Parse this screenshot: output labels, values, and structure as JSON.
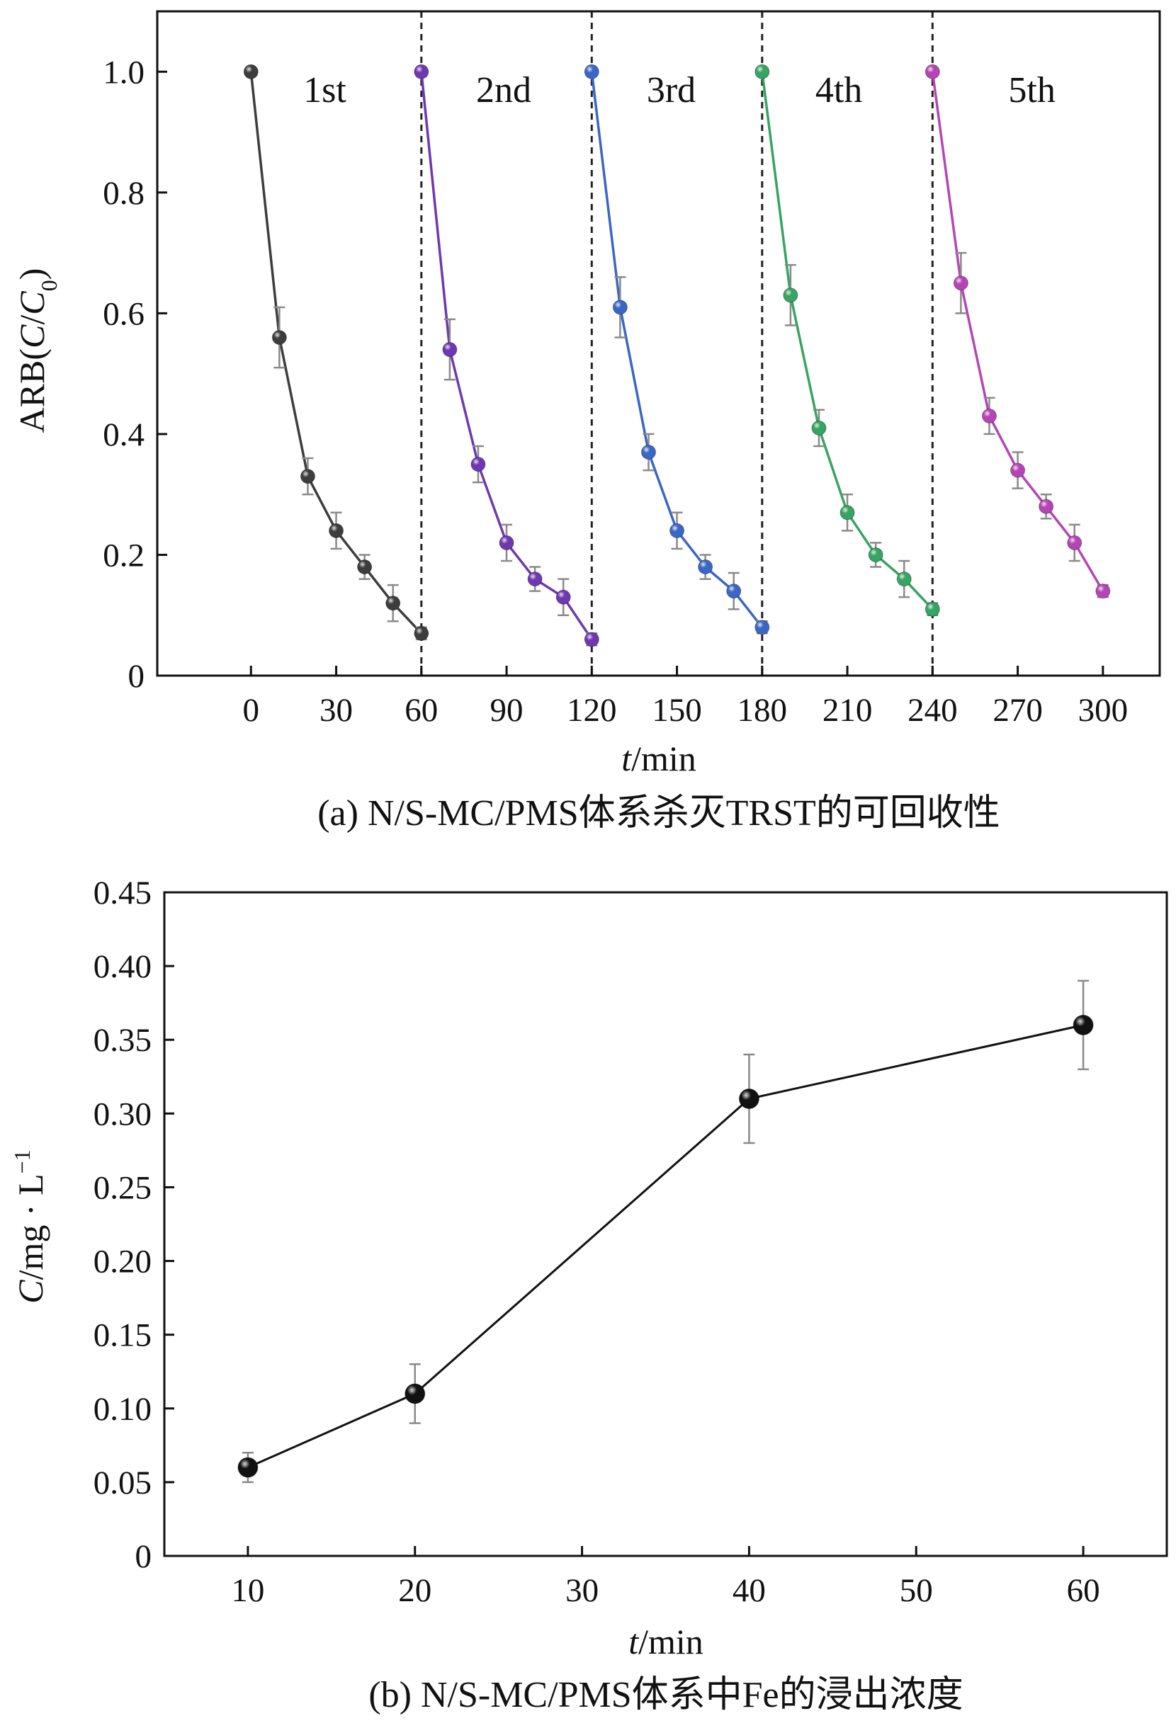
{
  "chart_data": [
    {
      "type": "line",
      "panel": "a",
      "ylabel_main": "ARB(",
      "ylabel_c": "C",
      "ylabel_slash": "/",
      "ylabel_c0": "C",
      "ylabel_sub": "0",
      "ylabel_close": ")",
      "xlabel_italic": "t",
      "xlabel_rest": "/min",
      "caption": "(a) N/S-MC/PMS体系杀灭TRST的可回收性",
      "xlim": [
        -33,
        320
      ],
      "ylim": [
        0,
        1.1
      ],
      "xticks": [
        0,
        30,
        60,
        90,
        120,
        150,
        180,
        210,
        240,
        270,
        300
      ],
      "xtick_labels": [
        "0",
        "30",
        "60",
        "90",
        "120",
        "150",
        "180",
        "210",
        "240",
        "270",
        "300"
      ],
      "yticks": [
        0,
        0.2,
        0.4,
        0.6,
        0.8,
        1.0
      ],
      "ytick_labels": [
        "0",
        "0.2",
        "0.4",
        "0.6",
        "0.8",
        "1.0"
      ],
      "dividers": [
        60,
        120,
        180,
        240
      ],
      "series": [
        {
          "name": "1st",
          "color": "#3d3d3d",
          "label_x": 26,
          "x": [
            0,
            10,
            20,
            30,
            40,
            50,
            60
          ],
          "y": [
            1.0,
            0.56,
            0.33,
            0.24,
            0.18,
            0.12,
            0.07
          ],
          "err": [
            0,
            0.05,
            0.03,
            0.03,
            0.02,
            0.03,
            0.01
          ]
        },
        {
          "name": "2nd",
          "color": "#6f38b0",
          "label_x": 89,
          "x": [
            60,
            70,
            80,
            90,
            100,
            110,
            120
          ],
          "y": [
            1.0,
            0.54,
            0.35,
            0.22,
            0.16,
            0.13,
            0.06
          ],
          "err": [
            0,
            0.05,
            0.03,
            0.03,
            0.02,
            0.03,
            0.01
          ]
        },
        {
          "name": "3rd",
          "color": "#3a66c6",
          "label_x": 148,
          "x": [
            120,
            130,
            140,
            150,
            160,
            170,
            180
          ],
          "y": [
            1.0,
            0.61,
            0.37,
            0.24,
            0.18,
            0.14,
            0.08
          ],
          "err": [
            0,
            0.05,
            0.03,
            0.03,
            0.02,
            0.03,
            0.01
          ]
        },
        {
          "name": "4th",
          "color": "#36a462",
          "label_x": 207,
          "x": [
            180,
            190,
            200,
            210,
            220,
            230,
            240
          ],
          "y": [
            1.0,
            0.63,
            0.41,
            0.27,
            0.2,
            0.16,
            0.11
          ],
          "err": [
            0,
            0.05,
            0.03,
            0.03,
            0.02,
            0.03,
            0.01
          ]
        },
        {
          "name": "5th",
          "color": "#b545b4",
          "label_x": 275,
          "x": [
            240,
            250,
            260,
            270,
            280,
            290,
            300
          ],
          "y": [
            1.0,
            0.65,
            0.43,
            0.34,
            0.28,
            0.22,
            0.14
          ],
          "err": [
            0,
            0.05,
            0.03,
            0.03,
            0.02,
            0.03,
            0.01
          ]
        }
      ]
    },
    {
      "type": "line",
      "panel": "b",
      "ylabel_italic": "C",
      "ylabel_rest": "/mg · L",
      "ylabel_sup": "−1",
      "xlabel_italic": "t",
      "xlabel_rest": "/min",
      "caption": "(b) N/S-MC/PMS体系中Fe的浸出浓度",
      "xlim": [
        5,
        65
      ],
      "ylim": [
        0,
        0.45
      ],
      "xticks": [
        10,
        20,
        30,
        40,
        50,
        60
      ],
      "xtick_labels": [
        "10",
        "20",
        "30",
        "40",
        "50",
        "60"
      ],
      "yticks": [
        0,
        0.05,
        0.1,
        0.15,
        0.2,
        0.25,
        0.3,
        0.35,
        0.4,
        0.45
      ],
      "ytick_labels": [
        "0",
        "0.05",
        "0.10",
        "0.15",
        "0.20",
        "0.25",
        "0.30",
        "0.35",
        "0.40",
        "0.45"
      ],
      "series": [
        {
          "name": "Fe",
          "color": "#111111",
          "x": [
            10,
            20,
            40,
            60
          ],
          "y": [
            0.06,
            0.11,
            0.31,
            0.36
          ],
          "err": [
            0.01,
            0.02,
            0.03,
            0.03
          ]
        }
      ]
    }
  ]
}
